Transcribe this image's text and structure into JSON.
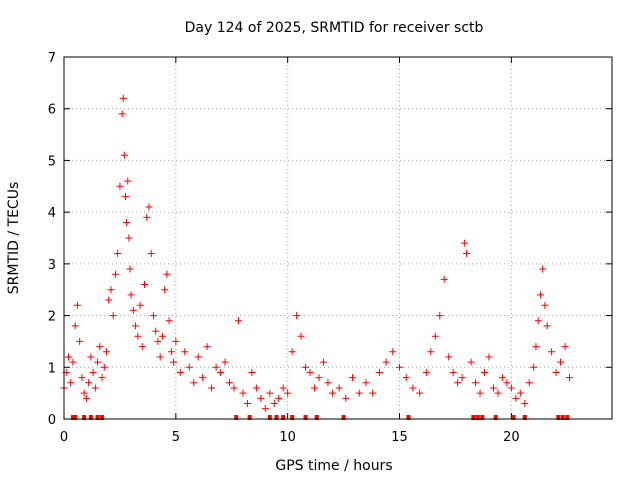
{
  "chart_data": {
    "type": "scatter",
    "title": "Day 124 of 2025, SRMTID for receiver sctb",
    "xlabel": "GPS time / hours",
    "ylabel": "SRMTID / TECUs",
    "xlim": [
      0,
      24.5
    ],
    "ylim": [
      0,
      7
    ],
    "xticks": [
      0,
      5,
      10,
      15,
      20
    ],
    "yticks": [
      0,
      1,
      2,
      3,
      4,
      5,
      6,
      7
    ],
    "grid": true,
    "marker": "+",
    "color": "#ff0000",
    "series": [
      {
        "name": "SRMTID",
        "x": [
          0.0,
          0.1,
          0.2,
          0.3,
          0.4,
          0.5,
          0.6,
          0.7,
          0.8,
          0.9,
          1.0,
          1.1,
          1.2,
          1.3,
          1.4,
          1.5,
          1.6,
          1.7,
          1.8,
          1.9,
          2.0,
          2.1,
          2.2,
          2.3,
          2.4,
          2.5,
          2.6,
          2.65,
          2.7,
          2.75,
          2.8,
          2.85,
          2.9,
          2.95,
          3.0,
          3.1,
          3.2,
          3.3,
          3.4,
          3.5,
          3.6,
          3.7,
          3.8,
          3.9,
          4.0,
          4.1,
          4.2,
          4.3,
          4.4,
          4.5,
          4.6,
          4.7,
          4.8,
          4.9,
          5.0,
          5.2,
          5.4,
          5.6,
          5.8,
          6.0,
          6.2,
          6.4,
          6.6,
          6.8,
          7.0,
          7.2,
          7.4,
          7.6,
          7.8,
          8.0,
          8.2,
          8.4,
          8.6,
          8.8,
          9.0,
          9.2,
          9.4,
          9.6,
          9.8,
          10.0,
          10.2,
          10.4,
          10.6,
          10.8,
          11.0,
          11.2,
          11.4,
          11.6,
          11.8,
          12.0,
          12.3,
          12.6,
          12.9,
          13.2,
          13.5,
          13.8,
          14.1,
          14.4,
          14.7,
          15.0,
          15.3,
          15.6,
          15.9,
          16.2,
          16.4,
          16.6,
          16.8,
          17.0,
          17.2,
          17.4,
          17.6,
          17.8,
          17.9,
          18.0,
          18.2,
          18.4,
          18.6,
          18.8,
          19.0,
          19.2,
          19.4,
          19.6,
          19.8,
          20.0,
          20.2,
          20.4,
          20.6,
          20.8,
          21.0,
          21.1,
          21.2,
          21.3,
          21.4,
          21.5,
          21.6,
          21.8,
          22.0,
          22.2,
          22.4,
          22.6
        ],
        "y": [
          0.6,
          0.9,
          1.2,
          0.7,
          1.1,
          1.8,
          2.2,
          1.5,
          0.8,
          0.5,
          0.4,
          0.7,
          1.2,
          0.9,
          0.6,
          1.1,
          1.4,
          0.8,
          1.0,
          1.3,
          2.3,
          2.5,
          2.0,
          2.8,
          3.2,
          4.5,
          5.9,
          6.2,
          5.1,
          4.3,
          3.8,
          4.6,
          3.5,
          2.9,
          2.4,
          2.1,
          1.8,
          1.6,
          2.2,
          1.4,
          2.6,
          3.9,
          4.1,
          3.2,
          2.0,
          1.7,
          1.5,
          1.2,
          1.6,
          2.5,
          2.8,
          1.9,
          1.3,
          1.1,
          1.5,
          0.9,
          1.3,
          1.0,
          0.7,
          1.2,
          0.8,
          1.4,
          0.6,
          1.0,
          0.9,
          1.1,
          0.7,
          0.6,
          1.9,
          0.5,
          0.3,
          0.9,
          0.6,
          0.4,
          0.2,
          0.5,
          0.3,
          0.4,
          0.6,
          0.5,
          1.3,
          2.0,
          1.6,
          1.0,
          0.9,
          0.6,
          0.8,
          1.1,
          0.7,
          0.5,
          0.6,
          0.4,
          0.8,
          0.5,
          0.7,
          0.5,
          0.9,
          1.1,
          1.3,
          1.0,
          0.8,
          0.6,
          0.5,
          0.9,
          1.3,
          1.6,
          2.0,
          2.7,
          1.2,
          0.9,
          0.7,
          0.8,
          3.4,
          3.2,
          1.1,
          0.7,
          0.5,
          0.9,
          1.2,
          0.6,
          0.5,
          0.8,
          0.7,
          0.6,
          0.4,
          0.5,
          0.3,
          0.7,
          1.0,
          1.4,
          1.9,
          2.4,
          2.9,
          2.2,
          1.8,
          1.3,
          0.9,
          1.1,
          1.4,
          0.8
        ],
        "zero_x": [
          0.4,
          0.5,
          0.9,
          1.2,
          1.5,
          1.7,
          7.7,
          8.3,
          9.2,
          9.5,
          9.8,
          10.2,
          10.8,
          11.3,
          12.5,
          15.4,
          18.3,
          18.5,
          18.7,
          19.3,
          20.1,
          20.6,
          22.1,
          22.3,
          22.5
        ]
      }
    ]
  }
}
